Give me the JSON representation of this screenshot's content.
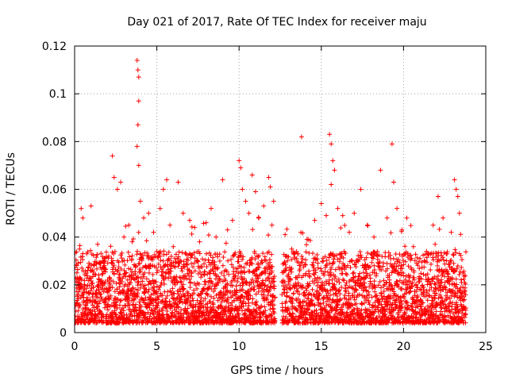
{
  "chart_data": {
    "type": "scatter",
    "title": "Day 021 of 2017, Rate Of TEC Index for receiver maju",
    "xlabel": "GPS time / hours",
    "ylabel": "ROTI / TECUs",
    "xlim": [
      0,
      25
    ],
    "ylim": [
      0,
      0.12
    ],
    "xticks": [
      0,
      5,
      10,
      15,
      20,
      25
    ],
    "xtick_labels": [
      "0",
      "5",
      "10",
      "15",
      "20",
      "25"
    ],
    "yticks": [
      0,
      0.02,
      0.04,
      0.06,
      0.08,
      0.1,
      0.12
    ],
    "ytick_labels": [
      "0",
      "0.02",
      "0.04",
      "0.06",
      "0.08",
      "0.1",
      "0.12"
    ],
    "grid": true,
    "marker": "+",
    "color": "#ff0000",
    "data_gap_hours": [
      12.2,
      12.6
    ],
    "series": [
      {
        "name": "ROTI",
        "points": [
          [
            0.1,
            0.012
          ],
          [
            0.2,
            0.021
          ],
          [
            0.3,
            0.035
          ],
          [
            0.4,
            0.052
          ],
          [
            0.5,
            0.048
          ],
          [
            0.6,
            0.018
          ],
          [
            0.8,
            0.026
          ],
          [
            1.0,
            0.053
          ],
          [
            1.1,
            0.016
          ],
          [
            1.4,
            0.037
          ],
          [
            1.8,
            0.03
          ],
          [
            2.0,
            0.022
          ],
          [
            2.3,
            0.074
          ],
          [
            2.4,
            0.065
          ],
          [
            2.6,
            0.06
          ],
          [
            2.8,
            0.063
          ],
          [
            3.0,
            0.04
          ],
          [
            3.3,
            0.045
          ],
          [
            3.5,
            0.038
          ],
          [
            3.8,
            0.114
          ],
          [
            3.85,
            0.11
          ],
          [
            3.9,
            0.107
          ],
          [
            3.9,
            0.097
          ],
          [
            3.85,
            0.087
          ],
          [
            3.8,
            0.078
          ],
          [
            3.9,
            0.07
          ],
          [
            4.0,
            0.055
          ],
          [
            4.2,
            0.048
          ],
          [
            4.5,
            0.05
          ],
          [
            4.8,
            0.042
          ],
          [
            5.0,
            0.034
          ],
          [
            5.2,
            0.052
          ],
          [
            5.4,
            0.06
          ],
          [
            5.6,
            0.064
          ],
          [
            5.8,
            0.045
          ],
          [
            6.0,
            0.036
          ],
          [
            6.3,
            0.063
          ],
          [
            6.6,
            0.05
          ],
          [
            7.0,
            0.047
          ],
          [
            7.3,
            0.044
          ],
          [
            7.6,
            0.038
          ],
          [
            8.0,
            0.046
          ],
          [
            8.3,
            0.052
          ],
          [
            8.6,
            0.04
          ],
          [
            9.0,
            0.064
          ],
          [
            9.3,
            0.043
          ],
          [
            9.6,
            0.047
          ],
          [
            10.0,
            0.072
          ],
          [
            10.1,
            0.069
          ],
          [
            10.2,
            0.06
          ],
          [
            10.4,
            0.055
          ],
          [
            10.6,
            0.05
          ],
          [
            10.8,
            0.066
          ],
          [
            11.0,
            0.059
          ],
          [
            11.2,
            0.048
          ],
          [
            11.5,
            0.053
          ],
          [
            11.8,
            0.065
          ],
          [
            11.9,
            0.061
          ],
          [
            12.0,
            0.045
          ],
          [
            12.1,
            0.055
          ],
          [
            12.8,
            0.041
          ],
          [
            13.2,
            0.035
          ],
          [
            13.5,
            0.031
          ],
          [
            13.8,
            0.082
          ],
          [
            14.2,
            0.039
          ],
          [
            14.6,
            0.047
          ],
          [
            15.0,
            0.054
          ],
          [
            15.3,
            0.049
          ],
          [
            15.5,
            0.083
          ],
          [
            15.6,
            0.079
          ],
          [
            15.7,
            0.072
          ],
          [
            15.6,
            0.062
          ],
          [
            15.8,
            0.068
          ],
          [
            16.0,
            0.052
          ],
          [
            16.3,
            0.049
          ],
          [
            16.7,
            0.042
          ],
          [
            17.0,
            0.05
          ],
          [
            17.4,
            0.06
          ],
          [
            17.8,
            0.045
          ],
          [
            18.2,
            0.04
          ],
          [
            18.6,
            0.068
          ],
          [
            19.0,
            0.048
          ],
          [
            19.3,
            0.079
          ],
          [
            19.4,
            0.063
          ],
          [
            19.6,
            0.052
          ],
          [
            19.9,
            0.043
          ],
          [
            20.2,
            0.048
          ],
          [
            20.6,
            0.036
          ],
          [
            21.0,
            0.031
          ],
          [
            21.4,
            0.034
          ],
          [
            21.8,
            0.045
          ],
          [
            22.1,
            0.057
          ],
          [
            22.4,
            0.048
          ],
          [
            22.6,
            0.033
          ],
          [
            22.9,
            0.042
          ],
          [
            23.1,
            0.064
          ],
          [
            23.2,
            0.06
          ],
          [
            23.3,
            0.057
          ],
          [
            23.4,
            0.05
          ],
          [
            23.6,
            0.025
          ]
        ]
      }
    ]
  }
}
